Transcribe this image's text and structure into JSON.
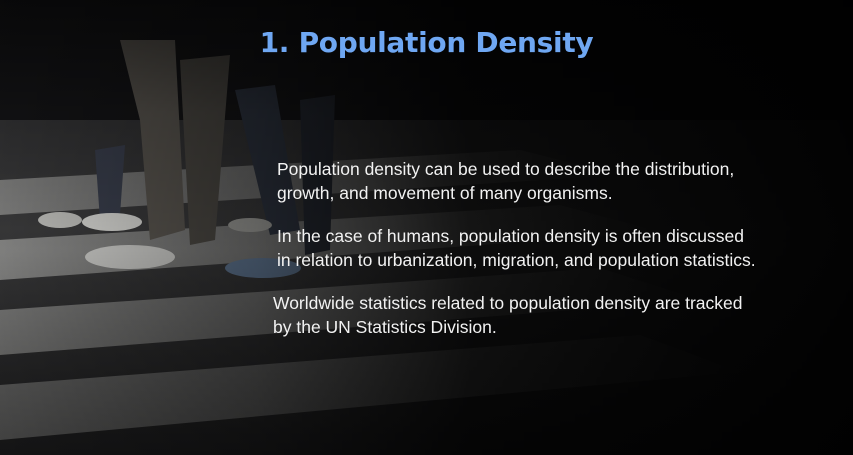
{
  "slide": {
    "title": "1. Population Density",
    "title_color": "#6fa7f2",
    "background_image": "crosswalk-pedestrians-photo",
    "paragraphs": [
      {
        "lines": [
          "Population density can be used to describe the distribution,",
          "growth, and movement of many organisms."
        ]
      },
      {
        "lines": [
          "In the case of humans, population density is often discussed",
          "in relation to urbanization, migration, and population statistics."
        ]
      },
      {
        "lines": [
          "Worldwide statistics related to population density are tracked",
          "by the UN Statistics Division."
        ]
      }
    ]
  }
}
